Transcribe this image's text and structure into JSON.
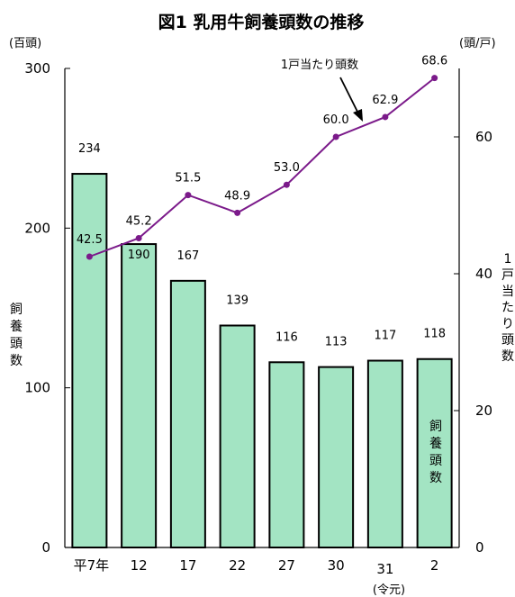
{
  "chart_data": {
    "type": "bar+line",
    "title": "図1 乳用牛飼養頭数の推移",
    "categories": [
      "平7年",
      "12",
      "17",
      "22",
      "27",
      "30",
      "31",
      "2"
    ],
    "category_note": "(令元)",
    "left_axis": {
      "unit": "(百頭)",
      "label": "飼養頭数",
      "range": [
        0,
        300
      ],
      "ticks": [
        "0",
        "100",
        "200",
        "300"
      ]
    },
    "right_axis": {
      "unit": "(頭/戸)",
      "label": "1戸当たり頭数",
      "range": [
        0,
        70
      ],
      "ticks": [
        "0",
        "20",
        "40",
        "60"
      ]
    },
    "series": [
      {
        "name": "飼養頭数",
        "type": "bar",
        "axis": "left",
        "values": [
          234,
          190,
          167,
          139,
          116,
          113,
          117,
          118
        ],
        "labels": [
          "234",
          "190",
          "167",
          "139",
          "116",
          "113",
          "117",
          "118"
        ],
        "color": "#a3e4c3"
      },
      {
        "name": "1戸当たり頭数",
        "type": "line",
        "axis": "right",
        "values": [
          42.5,
          45.2,
          51.5,
          48.9,
          53.0,
          60.0,
          62.9,
          68.6
        ],
        "labels": [
          "42.5",
          "45.2",
          "51.5",
          "48.9",
          "53.0",
          "60.0",
          "62.9",
          "68.6"
        ],
        "color": "#7b1a8a"
      }
    ],
    "annotations": {
      "line_callout": "1戸当たり頭数",
      "bar_callout": "飼養頭数"
    },
    "grid": false
  }
}
